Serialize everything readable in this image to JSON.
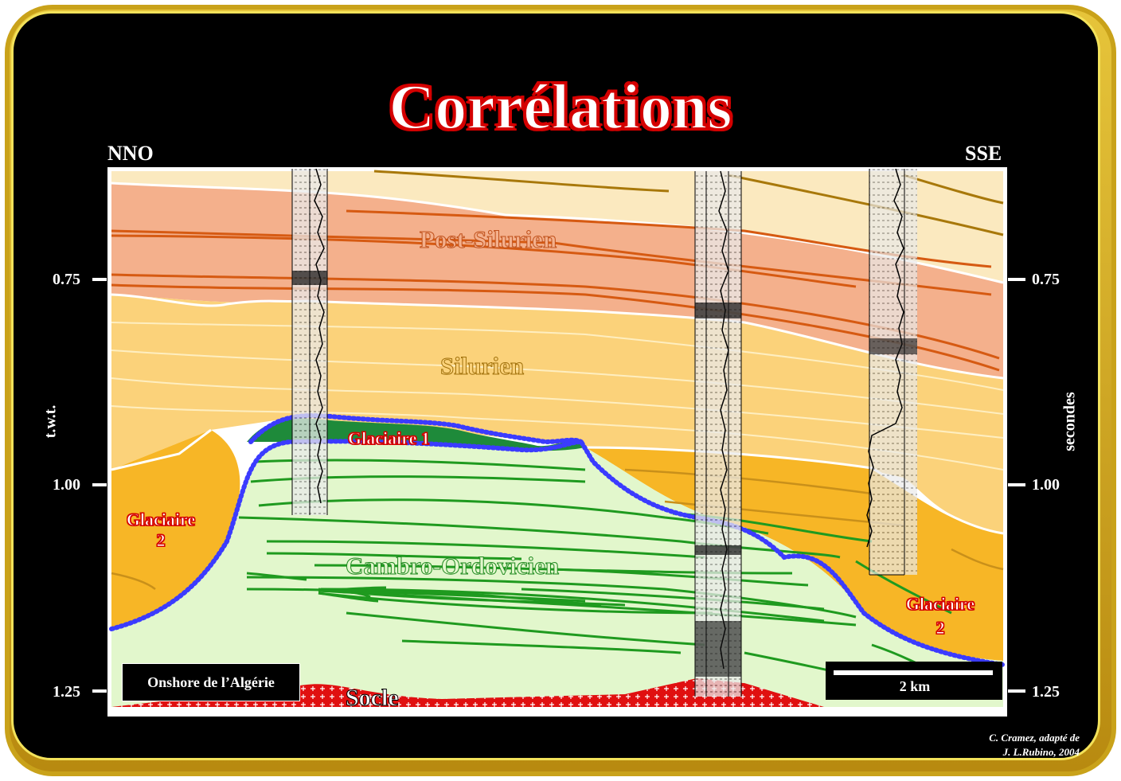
{
  "title": "Corrélations",
  "direction_left": "NNO",
  "direction_right": "SSE",
  "axis_left_label": "t.w.t.",
  "axis_right_label": "secondes",
  "ticks": [
    "0.75",
    "1.00",
    "1.25"
  ],
  "units": {
    "post_silurien": "Post-Silurien",
    "silurien": "Silurien",
    "glaciaire_1": "Glaciaire 1",
    "glaciaire_2_left_line1": "Glaciaire",
    "glaciaire_2_left_line2": "2",
    "glaciaire_2_right_line1": "Glaciaire",
    "glaciaire_2_right_line2": "2",
    "cambro_ordovicien": "Cambro-Ordovicien",
    "socle": "Socle"
  },
  "location_label": "Onshore de  l’Algérie",
  "scale_label": "2 km",
  "credit_line1": "C. Cramez, adapté de",
  "credit_line2": "J. L.Rubino, 2004",
  "colors": {
    "post_silurien": "#f4b08c",
    "silurien": "#fbd27a",
    "glaciaire_2": "#f7b626",
    "cambro_ordovicien": "#e2f7cc",
    "glaciaire_1": "#1e8a3a",
    "socle": "#e01010",
    "unconformity": "#3b3bff",
    "top_band": "#fbe9bf"
  }
}
